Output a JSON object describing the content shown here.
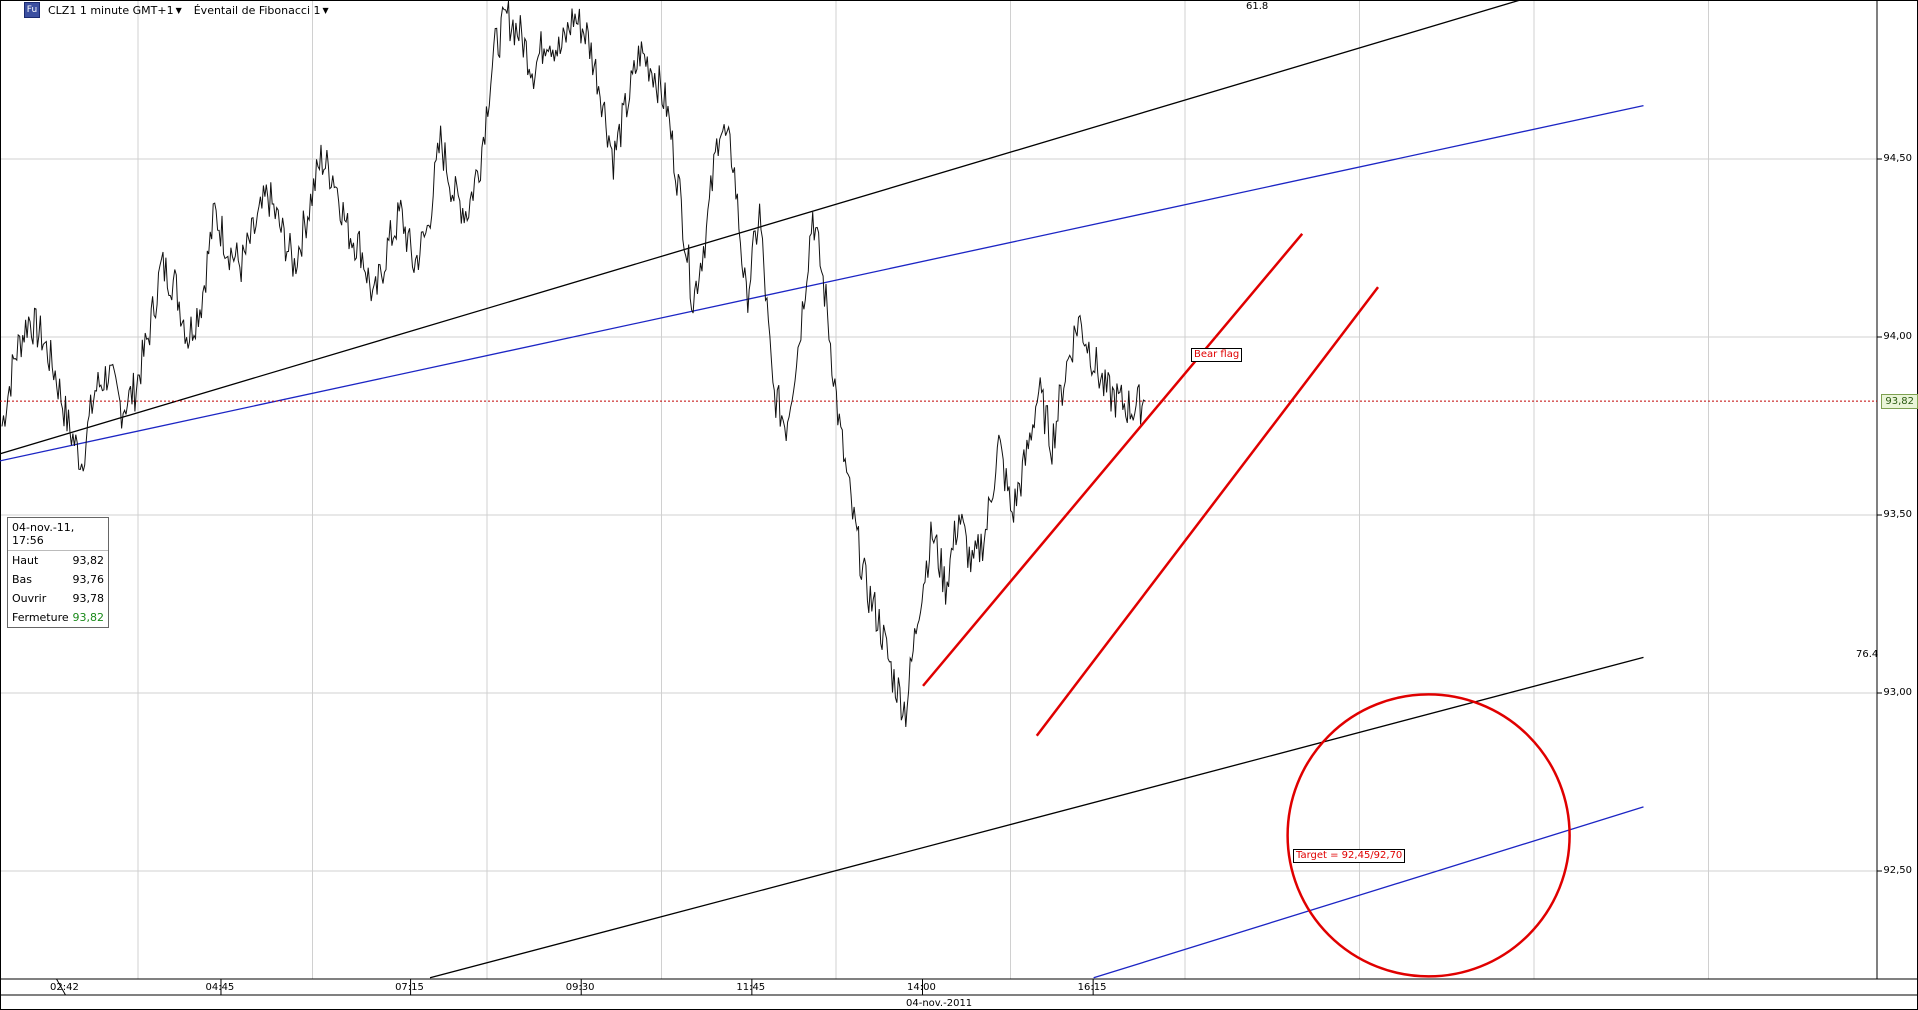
{
  "toolbar": {
    "symbol_label": "CLZ1 1 minute GMT+1",
    "tool_label": "Éventail de Fibonacci 1",
    "symbol_icon": "chart-icon"
  },
  "info_box": {
    "header": "04-nov.-11, 17:56",
    "rows": [
      {
        "label": "Haut",
        "value": "93,82"
      },
      {
        "label": "Bas",
        "value": "93,76"
      },
      {
        "label": "Ouvrir",
        "value": "93,78"
      },
      {
        "label": "Fermeture",
        "value": "93,82"
      }
    ]
  },
  "annotations": {
    "bear_flag": "Bear flag",
    "target": "Target = 92,45/92,70",
    "fib_618": "61.8",
    "fib_764": "76.4",
    "last_price": "93,82"
  },
  "colors": {
    "fib_black": "#000000",
    "fib_blue": "#1c25c4",
    "annotation_red": "#e00000",
    "last_price_line": "#c00000",
    "grid": "#d0d0d0"
  },
  "chart_data": {
    "type": "line",
    "title": "CLZ1 1 minute GMT+1",
    "date_label": "04-nov.-2011",
    "ylim": [
      92.2,
      95.0
    ],
    "yticks": [
      {
        "value": 92.5,
        "label": "92,50"
      },
      {
        "value": 93.0,
        "label": "93,00"
      },
      {
        "value": 93.5,
        "label": "93,50"
      },
      {
        "value": 94.0,
        "label": "94,00"
      },
      {
        "value": 94.5,
        "label": "94,50"
      }
    ],
    "xticks": [
      "02:42",
      "04:45",
      "07:15",
      "09:30",
      "11:45",
      "14:00",
      "16:15"
    ],
    "grid": true,
    "series": [
      {
        "values": [
          93.75,
          93.95,
          94.05,
          94.0,
          93.9,
          93.75,
          93.65,
          93.85,
          93.9,
          93.8,
          93.85,
          94.0,
          94.2,
          94.15,
          94.0,
          94.1,
          94.35,
          94.25,
          94.2,
          94.3,
          94.4,
          94.3,
          94.2,
          94.35,
          94.5,
          94.45,
          94.3,
          94.25,
          94.1,
          94.25,
          94.35,
          94.2,
          94.3,
          94.55,
          94.4,
          94.35,
          94.5,
          94.8,
          94.9,
          94.85,
          94.75,
          94.85,
          94.8,
          94.9,
          94.85,
          94.7,
          94.5,
          94.65,
          94.8,
          94.75,
          94.65,
          94.4,
          94.1,
          94.3,
          94.6,
          94.5,
          94.1,
          94.35,
          93.85,
          93.75,
          94.0,
          94.35,
          94.1,
          93.75,
          93.5,
          93.3,
          93.2,
          93.05,
          92.95,
          93.25,
          93.45,
          93.3,
          93.5,
          93.35,
          93.45,
          93.7,
          93.5,
          93.65,
          93.85,
          93.7,
          93.9,
          94.05,
          93.95,
          93.85,
          93.82,
          93.8,
          93.82
        ]
      }
    ],
    "last_price": 93.82,
    "info": {
      "time": "04-nov.-11, 17:56",
      "high": 93.82,
      "low": 93.76,
      "open": 93.78,
      "close": 93.82
    },
    "fib_fan": [
      {
        "level": "61.8",
        "color": "#000000",
        "x_start": "00:42",
        "y_start": 93.6,
        "x_end": "23:30",
        "y_end": 95.05
      },
      {
        "level": "76.4",
        "color": "#000000",
        "x_start": "07:30",
        "y_start": 92.2,
        "x_end": "23:30",
        "y_end": 93.1
      },
      {
        "color": "#1c25c4",
        "x_start": "00:42",
        "y_start": 93.6,
        "x_end": "23:30",
        "y_end": 94.65
      },
      {
        "color": "#1c25c4",
        "x_start": "16:15",
        "y_start": 92.2,
        "x_end": "23:30",
        "y_end": 92.68
      }
    ],
    "bear_flag_channel": [
      {
        "x_start": "14:00",
        "y_start": 93.02,
        "x_end": "19:00",
        "y_end": 94.29
      },
      {
        "x_start": "15:30",
        "y_start": 92.88,
        "x_end": "20:00",
        "y_end": 94.14
      }
    ],
    "target": {
      "label": "Target = 92,45/92,70",
      "x_center": "20:40",
      "y_center": 92.6,
      "y_low": 92.45,
      "y_high": 92.7
    }
  }
}
